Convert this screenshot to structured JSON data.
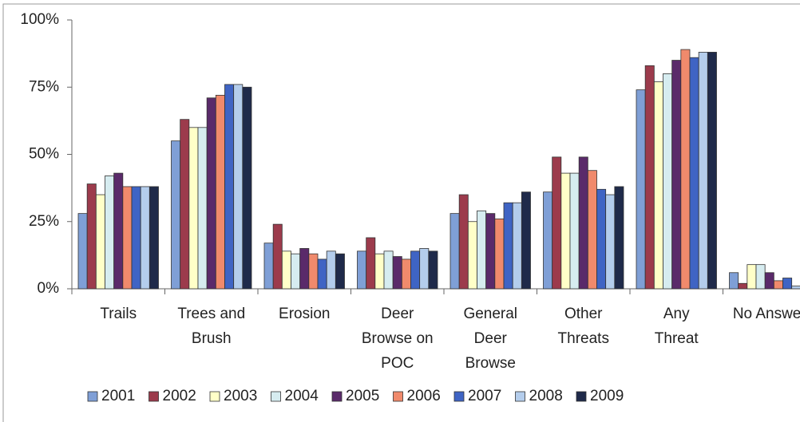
{
  "chart_data": {
    "type": "bar",
    "categories": [
      "Trails",
      "Trees and Brush",
      "Erosion",
      "Deer Browse on POC",
      "General Deer Browse",
      "Other Threats",
      "Any Threat",
      "No Answer"
    ],
    "series": [
      {
        "name": "2001",
        "color": "#7f9fd6",
        "values": [
          28,
          55,
          17,
          14,
          28,
          36,
          74,
          6
        ]
      },
      {
        "name": "2002",
        "color": "#9c3b4c",
        "values": [
          39,
          63,
          24,
          19,
          35,
          49,
          83,
          2
        ]
      },
      {
        "name": "2003",
        "color": "#ffffc8",
        "values": [
          35,
          60,
          14,
          13,
          25,
          43,
          77,
          9
        ]
      },
      {
        "name": "2004",
        "color": "#d6ecf0",
        "values": [
          42,
          60,
          13,
          14,
          29,
          43,
          80,
          9
        ]
      },
      {
        "name": "2005",
        "color": "#5a2a6a",
        "values": [
          43,
          71,
          15,
          12,
          28,
          49,
          85,
          6
        ]
      },
      {
        "name": "2006",
        "color": "#f08a6c",
        "values": [
          38,
          72,
          13,
          11,
          26,
          44,
          89,
          3
        ]
      },
      {
        "name": "2007",
        "color": "#3f64c4",
        "values": [
          38,
          76,
          11,
          14,
          32,
          37,
          86,
          4
        ]
      },
      {
        "name": "2008",
        "color": "#b4cdec",
        "values": [
          38,
          76,
          14,
          15,
          32,
          35,
          88,
          1
        ]
      },
      {
        "name": "2009",
        "color": "#1f2a4a",
        "values": [
          38,
          75,
          13,
          14,
          36,
          38,
          88,
          null
        ]
      }
    ],
    "ylim": [
      0,
      100
    ],
    "yticks": [
      {
        "value": 0,
        "label": "0%"
      },
      {
        "value": 25,
        "label": "25%"
      },
      {
        "value": 50,
        "label": "50%"
      },
      {
        "value": 75,
        "label": "75%"
      },
      {
        "value": 100,
        "label": "100%"
      }
    ],
    "legend": "bottom"
  }
}
